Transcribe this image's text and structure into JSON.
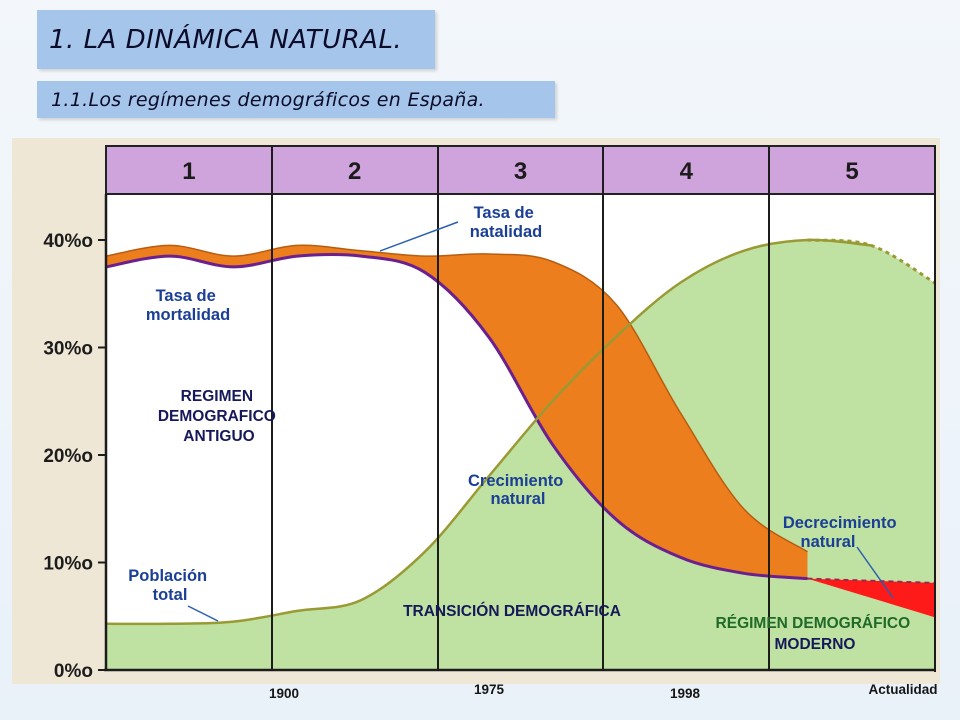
{
  "title": "1. LA DINÁMICA NATURAL.",
  "subtitle": "1.1.Los regímenes demográficos en España.",
  "chart_data": {
    "type": "area",
    "phases": [
      "1",
      "2",
      "3",
      "4",
      "5"
    ],
    "y_ticks": [
      "0%o",
      "10%o",
      "20%o",
      "30%o",
      "40%o"
    ],
    "ylim": [
      0,
      40
    ],
    "series": [
      {
        "name": "Tasa de natalidad",
        "values": [
          38.5,
          39.5,
          38.5,
          39.5,
          39,
          38.5,
          38.7,
          38,
          34,
          24,
          15,
          11,
          9,
          8
        ]
      },
      {
        "name": "Tasa de mortalidad",
        "values": [
          37.5,
          38.5,
          37.5,
          38.5,
          38.5,
          37,
          31,
          21,
          14,
          10.5,
          9,
          8.5,
          8.2,
          8
        ]
      },
      {
        "name": "Población total",
        "values": [
          4.3,
          4.3,
          4.5,
          5.5,
          6.5,
          11,
          18,
          25,
          31,
          36,
          39,
          40,
          39.5,
          36
        ]
      }
    ],
    "annotations": {
      "natalidad": [
        "Tasa de",
        "natalidad"
      ],
      "mortalidad": [
        "Tasa de",
        "mortalidad"
      ],
      "crecimiento": [
        "Crecimiento",
        "natural"
      ],
      "decrecimiento": [
        "Decrecimiento",
        "natural"
      ],
      "poblacion": [
        "Población",
        "total"
      ]
    },
    "regimes": {
      "antiguo": [
        "REGIMEN",
        "DEMOGRAFICO",
        "ANTIGUO"
      ],
      "transicion": "TRANSICIÓN DEMOGRÁFICA",
      "moderno": [
        "RÉGIMEN DEMOGRÁFICO",
        "MODERNO"
      ]
    },
    "years": [
      "1900",
      "1975",
      "1998",
      "Actualidad"
    ],
    "colors": {
      "phase_band": "#cfa3dc",
      "natalidad_area": "#ec7e1d",
      "mortalidad_line": "#6c1f8f",
      "poblacion_area": "#bfe2a3",
      "poblacion_line": "#9a9a35",
      "decrecimiento_area": "#ff1a1a"
    }
  }
}
